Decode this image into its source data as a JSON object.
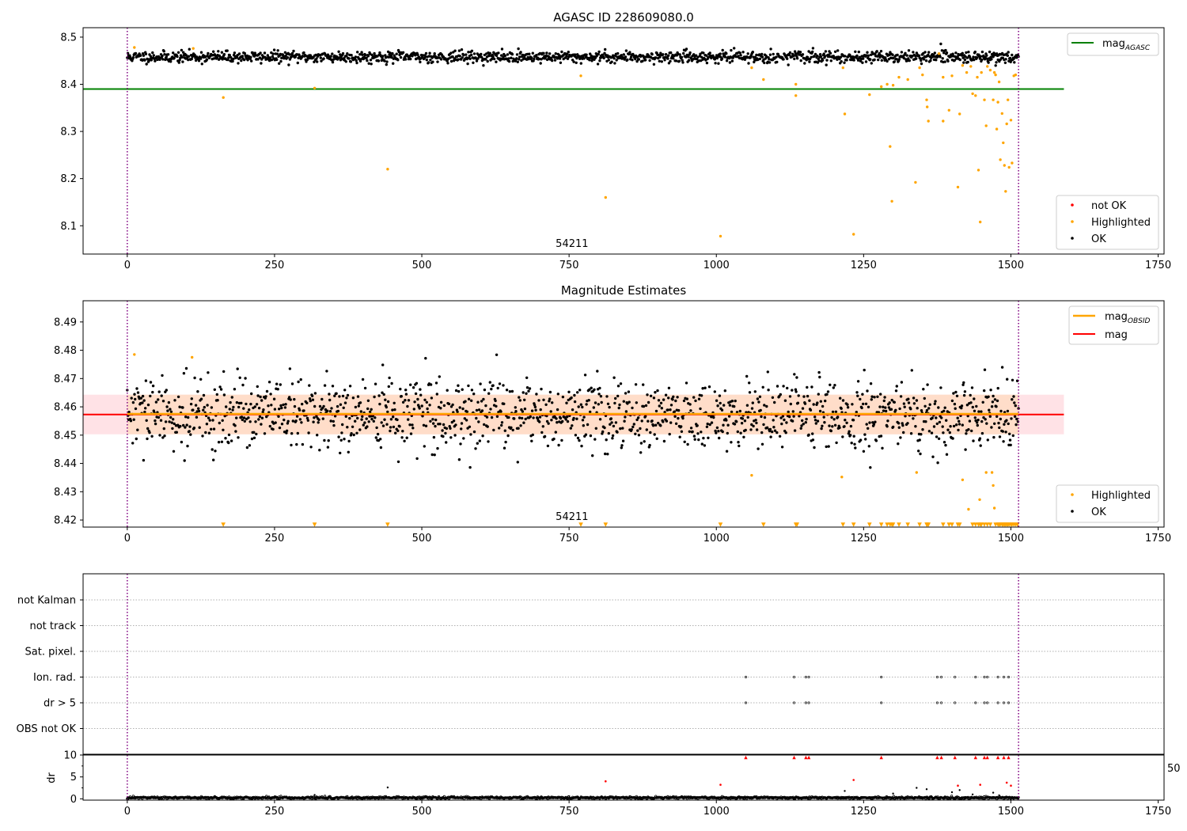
{
  "chart_data": [
    {
      "type": "scatter",
      "title": "AGASC ID 228609080.0",
      "xlabel": "",
      "ylabel": "",
      "xlim": [
        -75,
        1760
      ],
      "ylim": [
        8.04,
        8.52
      ],
      "x_ticks": [
        0,
        250,
        500,
        750,
        1000,
        1250,
        1500,
        1750
      ],
      "x_tick_labels": [
        "0",
        "250",
        "500",
        "750",
        "1000",
        "1250",
        "1500",
        "1750"
      ],
      "y_ticks": [
        8.1,
        8.2,
        8.3,
        8.4,
        8.5
      ],
      "y_tick_labels": [
        "8.1",
        "8.2",
        "8.3",
        "8.4",
        "8.5"
      ],
      "vlines": [
        0,
        1513
      ],
      "annotation": "54211",
      "annotation_x": 755,
      "legend_lines": [
        {
          "label": "mag",
          "sub": "AGASC",
          "color": "#008000"
        }
      ],
      "legend_points": [
        {
          "label": "not OK",
          "color": "#ff0000"
        },
        {
          "label": "Highlighted",
          "color": "#ffa500"
        },
        {
          "label": "OK",
          "color": "#000000"
        }
      ],
      "hline": {
        "name": "mag_AGASC",
        "y": 8.39,
        "x_range": [
          -75,
          1590
        ],
        "color": "#008000"
      },
      "series": [
        {
          "name": "OK",
          "color": "#000000",
          "generated": {
            "n": 1480,
            "x_range": [
              0,
              1513
            ],
            "y_center": 8.458,
            "y_spread": 0.006,
            "seed": 11
          }
        },
        {
          "name": "Highlighted",
          "color": "#ffa500",
          "points": [
            [
              12,
              8.478
            ],
            [
              112,
              8.476
            ],
            [
              163,
              8.372
            ],
            [
              318,
              8.392
            ],
            [
              442,
              8.22
            ],
            [
              770,
              8.418
            ],
            [
              812,
              8.16
            ],
            [
              1007,
              8.078
            ],
            [
              1060,
              8.435
            ],
            [
              1080,
              8.41
            ],
            [
              1135,
              8.4
            ],
            [
              1135,
              8.376
            ],
            [
              1215,
              8.435
            ],
            [
              1218,
              8.337
            ],
            [
              1233,
              8.082
            ],
            [
              1260,
              8.378
            ],
            [
              1280,
              8.395
            ],
            [
              1290,
              8.4
            ],
            [
              1295,
              8.268
            ],
            [
              1298,
              8.152
            ],
            [
              1300,
              8.398
            ],
            [
              1310,
              8.415
            ],
            [
              1325,
              8.41
            ],
            [
              1338,
              8.192
            ],
            [
              1345,
              8.435
            ],
            [
              1350,
              8.42
            ],
            [
              1357,
              8.367
            ],
            [
              1358,
              8.352
            ],
            [
              1360,
              8.322
            ],
            [
              1378,
              8.465
            ],
            [
              1385,
              8.415
            ],
            [
              1385,
              8.322
            ],
            [
              1395,
              8.345
            ],
            [
              1400,
              8.418
            ],
            [
              1410,
              8.182
            ],
            [
              1413,
              8.337
            ],
            [
              1418,
              8.44
            ],
            [
              1425,
              8.425
            ],
            [
              1432,
              8.438
            ],
            [
              1435,
              8.38
            ],
            [
              1440,
              8.376
            ],
            [
              1443,
              8.415
            ],
            [
              1445,
              8.218
            ],
            [
              1448,
              8.108
            ],
            [
              1450,
              8.425
            ],
            [
              1455,
              8.367
            ],
            [
              1458,
              8.312
            ],
            [
              1460,
              8.438
            ],
            [
              1465,
              8.43
            ],
            [
              1470,
              8.367
            ],
            [
              1472,
              8.425
            ],
            [
              1474,
              8.42
            ],
            [
              1476,
              8.305
            ],
            [
              1478,
              8.362
            ],
            [
              1480,
              8.405
            ],
            [
              1482,
              8.24
            ],
            [
              1485,
              8.338
            ],
            [
              1487,
              8.276
            ],
            [
              1489,
              8.228
            ],
            [
              1491,
              8.173
            ],
            [
              1493,
              8.316
            ],
            [
              1495,
              8.367
            ],
            [
              1497,
              8.224
            ],
            [
              1500,
              8.324
            ],
            [
              1502,
              8.233
            ],
            [
              1505,
              8.418
            ],
            [
              1508,
              8.42
            ]
          ]
        }
      ]
    },
    {
      "type": "scatter",
      "title": "Magnitude Estimates",
      "xlabel": "",
      "ylabel": "",
      "xlim": [
        -75,
        1760
      ],
      "ylim": [
        8.4175,
        8.4975
      ],
      "x_ticks": [
        0,
        250,
        500,
        750,
        1000,
        1250,
        1500,
        1750
      ],
      "x_tick_labels": [
        "0",
        "250",
        "500",
        "750",
        "1000",
        "1250",
        "1500",
        "1750"
      ],
      "y_ticks": [
        8.42,
        8.43,
        8.44,
        8.45,
        8.46,
        8.47,
        8.48,
        8.49
      ],
      "y_tick_labels": [
        "8.42",
        "8.43",
        "8.44",
        "8.45",
        "8.46",
        "8.47",
        "8.48",
        "8.49"
      ],
      "vlines": [
        0,
        1513
      ],
      "annotation": "54211",
      "annotation_x": 755,
      "legend_lines": [
        {
          "label": "mag",
          "sub": "OBSID",
          "color": "#ffa500"
        },
        {
          "label": "mag",
          "sub": "",
          "color": "#ff0000"
        }
      ],
      "legend_points": [
        {
          "label": "Highlighted",
          "color": "#ffa500"
        },
        {
          "label": "OK",
          "color": "#000000"
        }
      ],
      "mag_line": {
        "y": 8.4573,
        "x_range": [
          -75,
          1590
        ],
        "color": "#ff0000"
      },
      "mag_obsid": {
        "y": 8.4575,
        "x_range": [
          0,
          1513
        ],
        "color": "#ffa500"
      },
      "band": {
        "y_range": [
          8.4503,
          8.4643
        ],
        "x_range": [
          -75,
          1590
        ],
        "color": "#ffb6c1"
      },
      "band_obsid": {
        "y_range": [
          8.4503,
          8.4643
        ],
        "x_range": [
          0,
          1513
        ],
        "color": "#ffd8b0"
      },
      "series": [
        {
          "name": "OK",
          "color": "#000000",
          "generated": {
            "n": 1480,
            "x_range": [
              0,
              1513
            ],
            "y_center": 8.4572,
            "y_spread": 0.0062,
            "seed": 29
          }
        },
        {
          "name": "Highlighted",
          "color": "#ffa500",
          "points": [
            [
              12,
              8.4785
            ],
            [
              110,
              8.4775
            ],
            [
              1060,
              8.4358
            ],
            [
              1213,
              8.4352
            ],
            [
              1340,
              8.4368
            ],
            [
              1418,
              8.4342
            ],
            [
              1428,
              8.4238
            ],
            [
              1447,
              8.4272
            ],
            [
              1458,
              8.4368
            ],
            [
              1468,
              8.4368
            ],
            [
              1470,
              8.4322
            ],
            [
              1472,
              8.4242
            ]
          ]
        },
        {
          "name": "Highlighted-offscale",
          "color": "#ffa500",
          "marker": "triangle-down",
          "x": [
            163,
            318,
            442,
            770,
            812,
            1007,
            1080,
            1135,
            1137,
            1215,
            1233,
            1260,
            1280,
            1290,
            1295,
            1298,
            1300,
            1310,
            1325,
            1345,
            1357,
            1358,
            1360,
            1385,
            1395,
            1400,
            1410,
            1413,
            1435,
            1440,
            1445,
            1448,
            1450,
            1455,
            1460,
            1465,
            1474,
            1478,
            1480,
            1482,
            1485,
            1487,
            1489,
            1491,
            1493,
            1495,
            1497,
            1500,
            1502,
            1505,
            1508,
            1511
          ]
        }
      ]
    },
    {
      "type": "scatter",
      "title": "",
      "xlim": [
        -75,
        1760
      ],
      "x_ticks": [
        0,
        250,
        500,
        750,
        1000,
        1250,
        1500,
        1750
      ],
      "x_tick_labels": [
        "0",
        "250",
        "500",
        "750",
        "1000",
        "1250",
        "1500",
        "1750"
      ],
      "categories": [
        "not Kalman",
        "not track",
        "Sat. pixel.",
        "Ion. rad.",
        "dr > 5",
        "OBS not OK"
      ],
      "vlines": [
        0,
        1513
      ],
      "flag_points": {
        "Ion. rad.": [
          1050,
          1132,
          1152,
          1157,
          1280,
          1375,
          1382,
          1405,
          1440,
          1455,
          1460,
          1478,
          1488,
          1496
        ],
        "dr > 5": [
          1050,
          1132,
          1152,
          1157,
          1280,
          1375,
          1382,
          1405,
          1440,
          1455,
          1460,
          1478,
          1488,
          1496
        ]
      },
      "partial_tick_label": "50"
    },
    {
      "type": "scatter",
      "title": "",
      "xlabel": "",
      "ylabel": "dr",
      "xlim": [
        -75,
        1760
      ],
      "ylim": [
        -0.3,
        10
      ],
      "x_ticks": [
        0,
        250,
        500,
        750,
        1000,
        1250,
        1500,
        1750
      ],
      "x_tick_labels": [
        "0",
        "250",
        "500",
        "750",
        "1000",
        "1250",
        "1500",
        "1750"
      ],
      "y_ticks": [
        0,
        5,
        10
      ],
      "y_tick_labels": [
        "0",
        "5",
        "10"
      ],
      "vlines": [
        0,
        1513
      ],
      "series": [
        {
          "name": "OK",
          "color": "#000000",
          "generated": {
            "n": 1480,
            "x_range": [
              0,
              1513
            ],
            "y_center": 0.25,
            "y_spread": 0.12,
            "seed": 47
          }
        },
        {
          "name": "OK-outliers",
          "color": "#000000",
          "points": [
            [
              318,
              0.9
            ],
            [
              442,
              2.6
            ],
            [
              1218,
              1.8
            ],
            [
              1300,
              1.2
            ],
            [
              1340,
              2.5
            ],
            [
              1357,
              2.2
            ],
            [
              1400,
              1.5
            ],
            [
              1413,
              2.0
            ],
            [
              1435,
              1.0
            ],
            [
              1470,
              1.4
            ],
            [
              1480,
              0.8
            ]
          ]
        },
        {
          "name": "not OK",
          "color": "#ff0000",
          "points": [
            [
              812,
              4.0
            ],
            [
              1007,
              3.2
            ],
            [
              1233,
              4.3
            ],
            [
              1410,
              3.0
            ],
            [
              1448,
              3.2
            ],
            [
              1493,
              3.7
            ],
            [
              1500,
              3.0
            ]
          ]
        },
        {
          "name": "not OK-offscale",
          "color": "#ff0000",
          "marker": "triangle-up",
          "x": [
            1050,
            1132,
            1152,
            1157,
            1280,
            1375,
            1382,
            1405,
            1440,
            1455,
            1460,
            1478,
            1488,
            1496
          ]
        }
      ]
    }
  ]
}
